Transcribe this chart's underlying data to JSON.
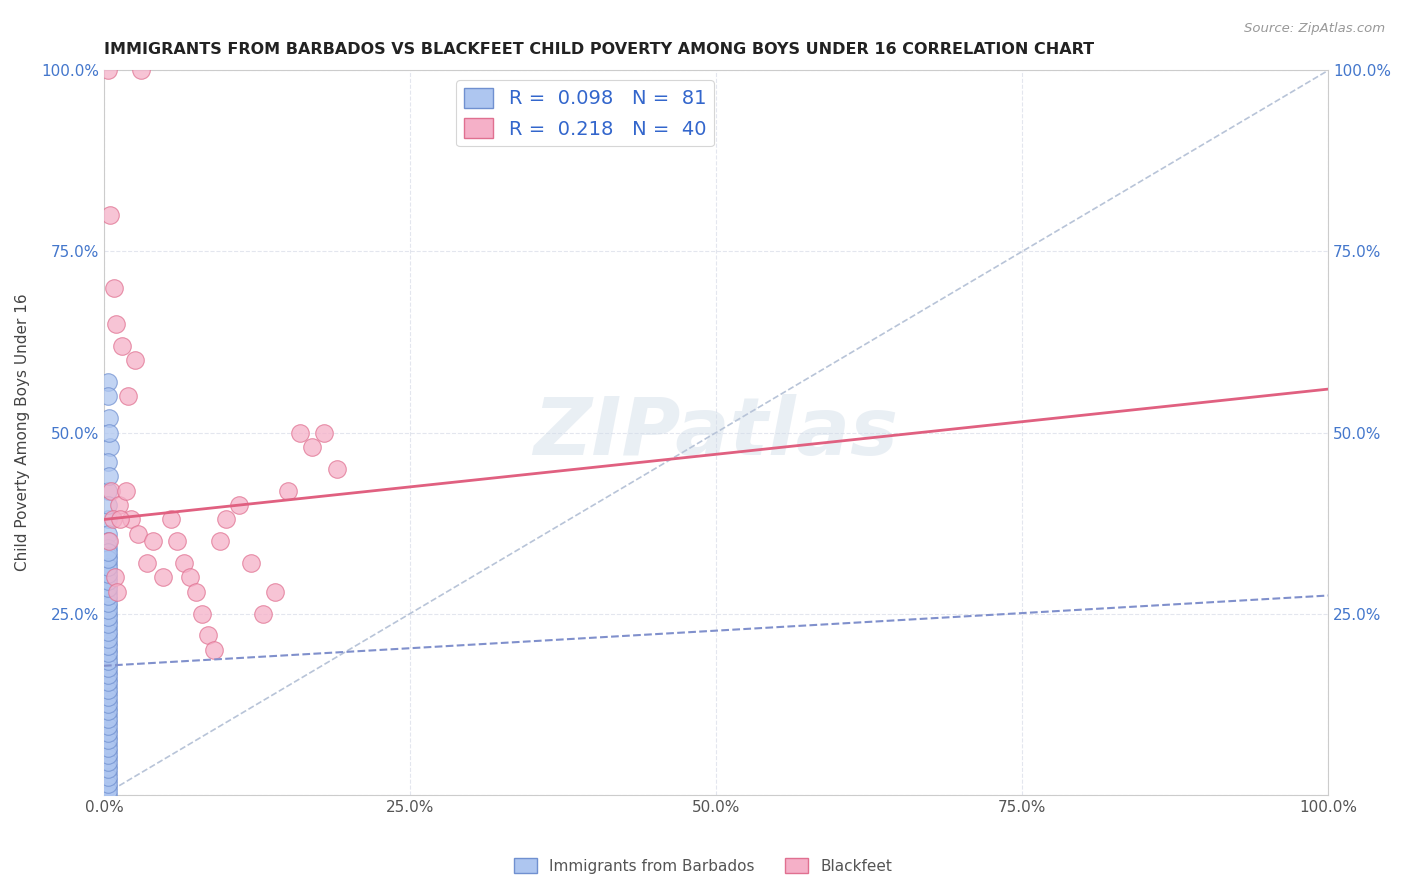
{
  "title": "IMMIGRANTS FROM BARBADOS VS BLACKFEET CHILD POVERTY AMONG BOYS UNDER 16 CORRELATION CHART",
  "source": "Source: ZipAtlas.com",
  "ylabel": "Child Poverty Among Boys Under 16",
  "xlim": [
    0,
    1.0
  ],
  "ylim": [
    0,
    1.0
  ],
  "blue_color": "#aec6f0",
  "blue_edge": "#7090d0",
  "pink_color": "#f5b0c8",
  "pink_edge": "#e07090",
  "trendline_blue_color": "#8090cc",
  "trendline_pink_color": "#e06080",
  "diagonal_color": "#b8c4d8",
  "legend_R_blue": "0.098",
  "legend_N_blue": "81",
  "legend_R_pink": "0.218",
  "legend_N_pink": "40",
  "legend_label_blue": "Immigrants from Barbados",
  "legend_label_pink": "Blackfeet",
  "blue_scatter_x": [
    0.003,
    0.003,
    0.003,
    0.004,
    0.005,
    0.004,
    0.003,
    0.004,
    0.003,
    0.003,
    0.003,
    0.003,
    0.003,
    0.003,
    0.003,
    0.003,
    0.003,
    0.003,
    0.003,
    0.003,
    0.003,
    0.003,
    0.003,
    0.003,
    0.003,
    0.003,
    0.003,
    0.003,
    0.003,
    0.003,
    0.003,
    0.003,
    0.003,
    0.003,
    0.003,
    0.003,
    0.003,
    0.003,
    0.003,
    0.003,
    0.003,
    0.003,
    0.003,
    0.003,
    0.003,
    0.003,
    0.003,
    0.003,
    0.003,
    0.003,
    0.003,
    0.003,
    0.003,
    0.003,
    0.003,
    0.003,
    0.003,
    0.003,
    0.003,
    0.003,
    0.003,
    0.003,
    0.003,
    0.003,
    0.003,
    0.003,
    0.003,
    0.003,
    0.003,
    0.003,
    0.003,
    0.003,
    0.003,
    0.003,
    0.003,
    0.003,
    0.003,
    0.003,
    0.003,
    0.003,
    0.003
  ],
  "blue_scatter_y": [
    0.42,
    0.57,
    0.55,
    0.52,
    0.48,
    0.5,
    0.46,
    0.44,
    0.38,
    0.4,
    0.36,
    0.34,
    0.32,
    0.3,
    0.35,
    0.33,
    0.31,
    0.29,
    0.28,
    0.27,
    0.26,
    0.25,
    0.24,
    0.23,
    0.22,
    0.21,
    0.2,
    0.19,
    0.18,
    0.17,
    0.16,
    0.15,
    0.14,
    0.13,
    0.12,
    0.11,
    0.1,
    0.09,
    0.08,
    0.07,
    0.06,
    0.05,
    0.04,
    0.03,
    0.02,
    0.01,
    0.0,
    0.005,
    0.015,
    0.025,
    0.035,
    0.045,
    0.055,
    0.065,
    0.075,
    0.085,
    0.095,
    0.105,
    0.115,
    0.125,
    0.135,
    0.145,
    0.155,
    0.165,
    0.175,
    0.185,
    0.195,
    0.205,
    0.215,
    0.225,
    0.235,
    0.245,
    0.255,
    0.265,
    0.275,
    0.285,
    0.295,
    0.305,
    0.315,
    0.325,
    0.335
  ],
  "pink_scatter_x": [
    0.003,
    0.03,
    0.005,
    0.008,
    0.01,
    0.015,
    0.02,
    0.025,
    0.006,
    0.012,
    0.018,
    0.022,
    0.028,
    0.035,
    0.04,
    0.048,
    0.055,
    0.06,
    0.065,
    0.07,
    0.075,
    0.08,
    0.085,
    0.09,
    0.095,
    0.1,
    0.11,
    0.12,
    0.13,
    0.14,
    0.15,
    0.16,
    0.17,
    0.18,
    0.19,
    0.004,
    0.007,
    0.009,
    0.011,
    0.013
  ],
  "pink_scatter_y": [
    1.0,
    1.0,
    0.8,
    0.7,
    0.65,
    0.62,
    0.55,
    0.6,
    0.42,
    0.4,
    0.42,
    0.38,
    0.36,
    0.32,
    0.35,
    0.3,
    0.38,
    0.35,
    0.32,
    0.3,
    0.28,
    0.25,
    0.22,
    0.2,
    0.35,
    0.38,
    0.4,
    0.32,
    0.25,
    0.28,
    0.42,
    0.5,
    0.48,
    0.5,
    0.45,
    0.35,
    0.38,
    0.3,
    0.28,
    0.38
  ],
  "blue_trend_x": [
    0.0,
    1.0
  ],
  "blue_trend_y": [
    0.178,
    0.275
  ],
  "pink_trend_x": [
    0.0,
    1.0
  ],
  "pink_trend_y": [
    0.38,
    0.56
  ]
}
